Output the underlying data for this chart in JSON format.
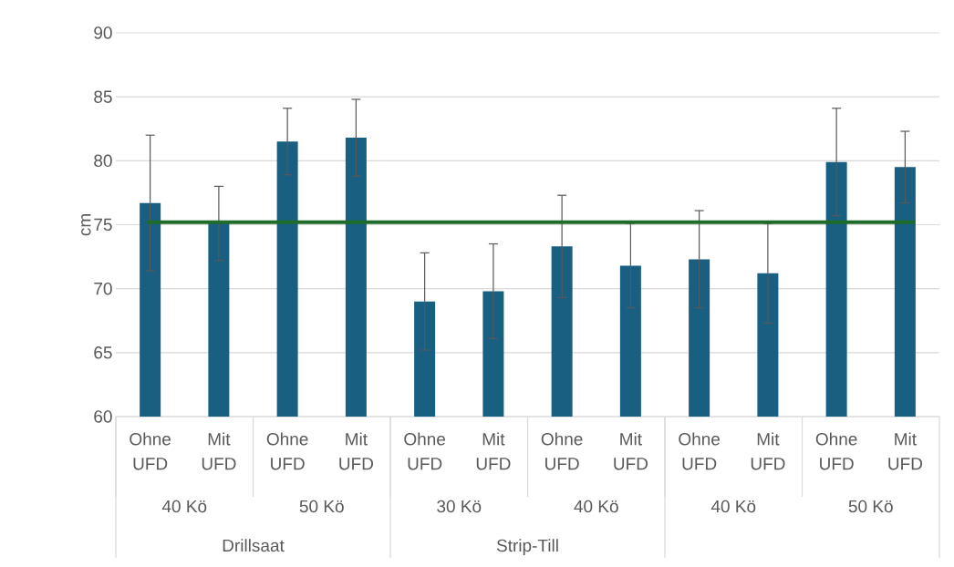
{
  "chart_data": {
    "type": "bar",
    "ylabel": "cm",
    "categories": [
      "Ohne UFD",
      "Mit UFD",
      "Ohne UFD",
      "Mit UFD",
      "Ohne UFD",
      "Mit UFD",
      "Ohne UFD",
      "Mit UFD",
      "Ohne UFD",
      "Mit UFD",
      "Ohne UFD",
      "Mit UFD"
    ],
    "values": [
      76.7,
      75.1,
      81.5,
      81.8,
      69.0,
      69.8,
      73.3,
      71.8,
      72.3,
      71.2,
      79.9,
      79.5
    ],
    "errors": [
      5.3,
      2.9,
      2.6,
      3.0,
      3.8,
      3.7,
      4.0,
      3.3,
      3.8,
      3.9,
      4.2,
      2.8
    ],
    "color": "#185f82",
    "ylim": [
      60,
      90
    ],
    "yticks": [
      60,
      65,
      70,
      75,
      80,
      85,
      90
    ],
    "grid": "y",
    "ref_lines": [
      {
        "axis": "y",
        "value": 75.2,
        "color": "#1e6b2a"
      }
    ],
    "annotations": [
      "40 Kö",
      "50 Kö",
      "30 Kö",
      "40 Kö",
      "40 Kö",
      "50 Kö",
      "Drillsaat",
      "Strip-Till"
    ]
  }
}
